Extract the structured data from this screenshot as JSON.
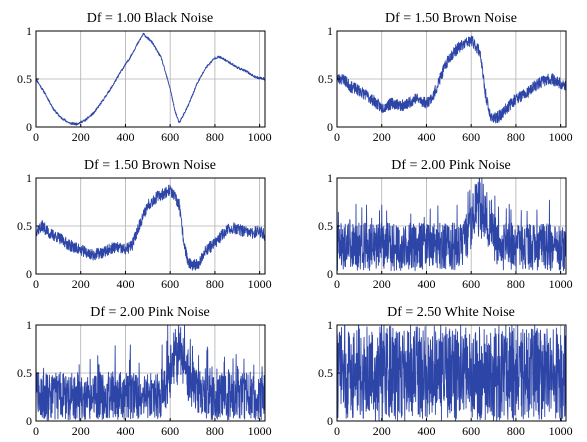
{
  "chart_data": [
    {
      "type": "line",
      "title": "Df = 1.00 Black Noise",
      "xlim": [
        0,
        1024
      ],
      "ylim": [
        0,
        1
      ],
      "xticks": [
        "0",
        "200",
        "400",
        "600",
        "800",
        "1000"
      ],
      "yticks": [
        "0",
        "0.5",
        "1"
      ],
      "grid": true,
      "line_color": "#2e45a8",
      "generator": {
        "kind": "anchors",
        "noise": 0.012,
        "seed": 11
      },
      "x": [
        0,
        40,
        80,
        110,
        150,
        180,
        220,
        260,
        300,
        340,
        380,
        420,
        450,
        480,
        520,
        560,
        600,
        620,
        640,
        680,
        720,
        760,
        800,
        820,
        860,
        900,
        940,
        980,
        1024
      ],
      "y": [
        0.5,
        0.35,
        0.18,
        0.1,
        0.04,
        0.03,
        0.07,
        0.15,
        0.28,
        0.42,
        0.58,
        0.72,
        0.85,
        0.97,
        0.88,
        0.72,
        0.4,
        0.18,
        0.04,
        0.22,
        0.45,
        0.62,
        0.72,
        0.73,
        0.68,
        0.62,
        0.58,
        0.52,
        0.5
      ]
    },
    {
      "type": "line",
      "title": "Df = 1.50 Brown Noise",
      "xlim": [
        0,
        1024
      ],
      "ylim": [
        0,
        1
      ],
      "xticks": [
        "0",
        "200",
        "400",
        "600",
        "800",
        "1000"
      ],
      "yticks": [
        "0",
        "0.5",
        "1"
      ],
      "grid": true,
      "line_color": "#2e45a8",
      "generator": {
        "kind": "anchors",
        "noise": 0.06,
        "seed": 23
      },
      "x": [
        0,
        30,
        60,
        100,
        150,
        200,
        250,
        300,
        350,
        400,
        430,
        460,
        500,
        540,
        580,
        600,
        620,
        640,
        660,
        680,
        700,
        730,
        760,
        800,
        850,
        880,
        920,
        960,
        1000,
        1024
      ],
      "y": [
        0.5,
        0.5,
        0.42,
        0.38,
        0.3,
        0.2,
        0.25,
        0.22,
        0.3,
        0.25,
        0.32,
        0.5,
        0.72,
        0.82,
        0.88,
        0.9,
        0.85,
        0.78,
        0.4,
        0.15,
        0.08,
        0.12,
        0.2,
        0.3,
        0.35,
        0.42,
        0.48,
        0.5,
        0.45,
        0.42
      ]
    },
    {
      "type": "line",
      "title": "Df = 1.50 Brown Noise",
      "xlim": [
        0,
        1024
      ],
      "ylim": [
        0,
        1
      ],
      "xticks": [
        "0",
        "200",
        "400",
        "600",
        "800",
        "1000"
      ],
      "yticks": [
        "0",
        "0.5",
        "1"
      ],
      "grid": true,
      "line_color": "#2e45a8",
      "generator": {
        "kind": "anchors",
        "noise": 0.06,
        "seed": 37
      },
      "x": [
        0,
        30,
        60,
        100,
        150,
        200,
        250,
        300,
        350,
        400,
        430,
        460,
        500,
        540,
        580,
        600,
        620,
        640,
        660,
        680,
        700,
        730,
        760,
        800,
        850,
        880,
        920,
        960,
        1000,
        1024
      ],
      "y": [
        0.45,
        0.5,
        0.42,
        0.38,
        0.3,
        0.25,
        0.2,
        0.22,
        0.28,
        0.25,
        0.3,
        0.5,
        0.72,
        0.8,
        0.85,
        0.88,
        0.8,
        0.72,
        0.35,
        0.12,
        0.08,
        0.12,
        0.25,
        0.32,
        0.45,
        0.48,
        0.45,
        0.42,
        0.45,
        0.4
      ]
    },
    {
      "type": "line",
      "title": "Df = 2.00 Pink Noise",
      "xlim": [
        0,
        1024
      ],
      "ylim": [
        0,
        1
      ],
      "xticks": [
        "0",
        "200",
        "400",
        "600",
        "800",
        "1000"
      ],
      "yticks": [
        "0",
        "0.5",
        "1"
      ],
      "grid": true,
      "line_color": "#2e45a8",
      "generator": {
        "kind": "random",
        "mean": 0.28,
        "spread": 0.5,
        "seed": 41,
        "peak_x": 640,
        "peak_width": 50,
        "peak_height": 0.55
      }
    },
    {
      "type": "line",
      "title": "Df = 2.00 Pink Noise",
      "xlim": [
        0,
        1024
      ],
      "ylim": [
        0,
        1
      ],
      "xticks": [
        "0",
        "200",
        "400",
        "600",
        "800",
        "1000"
      ],
      "yticks": [
        "0",
        "0.5",
        "1"
      ],
      "grid": true,
      "line_color": "#2e45a8",
      "generator": {
        "kind": "random",
        "mean": 0.26,
        "spread": 0.5,
        "seed": 59,
        "peak_x": 640,
        "peak_width": 50,
        "peak_height": 0.55
      }
    },
    {
      "type": "line",
      "title": "Df = 2.50 White Noise",
      "xlim": [
        0,
        1024
      ],
      "ylim": [
        0,
        1
      ],
      "xticks": [
        "0",
        "200",
        "400",
        "600",
        "800",
        "1000"
      ],
      "yticks": [
        "0",
        "0.5",
        "1"
      ],
      "grid": true,
      "line_color": "#2e45a8",
      "generator": {
        "kind": "random",
        "mean": 0.5,
        "spread": 1.0,
        "seed": 73
      }
    }
  ]
}
